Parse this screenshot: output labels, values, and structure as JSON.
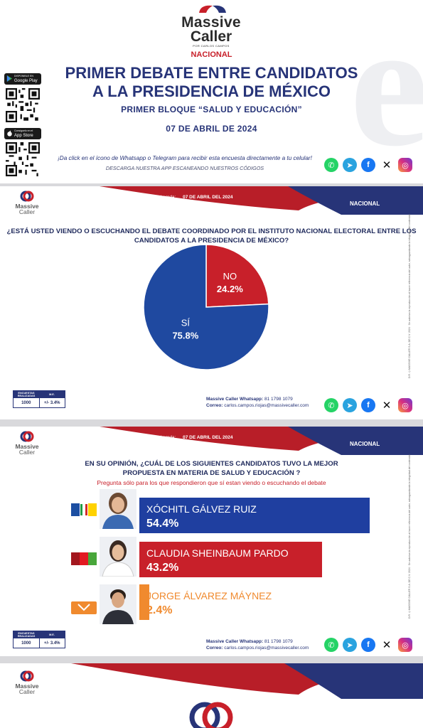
{
  "brand": {
    "name_line1": "Massive",
    "name_line2": "Caller",
    "tagline": "POR CARLOS CAMPOS"
  },
  "header": {
    "scope": "NACIONAL",
    "title_line1": "PRIMER DEBATE ENTRE CANDIDATOS",
    "title_line2": "A LA PRESIDENCIA DE MÉXICO",
    "subtitle": "PRIMER BLOQUE “SALUD Y EDUCACIÓN”",
    "date": "07 DE ABRIL DE 2024",
    "promo_text": "¡Da click en el ícono de Whatsapp o Telegram para recibir esta encuesta directamente a tu celular!",
    "download_text": "DESCARGA NUESTRA APP ESCANEANDO NUESTROS CÓDIGOS",
    "google_play_small": "DISPONIBLE EN",
    "google_play": "Google Play",
    "app_store_small": "Consíguelo en el",
    "app_store": "App Store"
  },
  "report": {
    "last_poll_label": "Última encuesta elaborada:",
    "last_poll_date": "07 DE ABRIL DEL 2024",
    "scope": "NACIONAL",
    "stats_header_1": "ENCUESTAS REALIZADAS",
    "stats_header_2": "M.E.",
    "stats_n": "1000",
    "stats_me": "+/- 3.4%",
    "whatsapp_label": "Massive Caller Whatsapp:",
    "whatsapp_number": "81 1798 1079",
    "email_label": "Correo:",
    "email": "carlos.campos.riojas@massivecaller.com",
    "vertical_1": "D.R. ©MASSIVE CALLER S.A. DE C.V. 2024",
    "vertical_2": "Se autoriza la reproducción al hacer referencia del autor, salvaguardando la integridad del contenido."
  },
  "social_icons": [
    "whatsapp-icon",
    "telegram-icon",
    "facebook-icon",
    "x-icon",
    "instagram-icon"
  ],
  "colors": {
    "navy": "#273478",
    "red": "#c8202a",
    "orange": "#f08a2e",
    "blue": "#1f49a0"
  },
  "chart_data": [
    {
      "type": "pie",
      "title": "¿ESTÁ USTED VIENDO O ESCUCHANDO EL DEBATE COORDINADO POR EL INSTITUTO NACIONAL ELECTORAL ENTRE LOS CANDIDATOS A LA PRESIDENCIA DE MÉXICO?",
      "slices": [
        {
          "label": "SÍ",
          "value": 75.8,
          "display": "75.8%",
          "color": "#1f49a0"
        },
        {
          "label": "NO",
          "value": 24.2,
          "display": "24.2%",
          "color": "#c8202a"
        }
      ]
    },
    {
      "type": "bar",
      "orientation": "horizontal",
      "title": "EN SU OPINIÓN, ¿CUÁL DE LOS SIGUIENTES CANDIDATOS TUVO LA MEJOR PROPUESTA EN MATERIA DE SALUD Y EDUCACIÓN ?",
      "note": "Pregunta sólo para los que respondieron que sí estan viendo o escuchando el debate",
      "categories": [
        "XÓCHITL GÁLVEZ RUIZ",
        "CLAUDIA SHEINBAUM PARDO",
        "JORGE ÁLVAREZ MÁYNEZ"
      ],
      "values": [
        54.4,
        43.2,
        2.4
      ],
      "display": [
        "54.4%",
        "43.2%",
        "2.4%"
      ],
      "colors": [
        "#1f3fa0",
        "#c8202a",
        "#f08a2e"
      ]
    }
  ]
}
